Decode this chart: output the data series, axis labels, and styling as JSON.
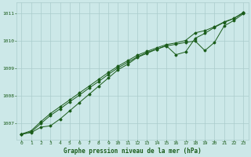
{
  "title": "Graphe pression niveau de la mer (hPa)",
  "bg_color": "#cce8e8",
  "grid_color": "#aacccc",
  "line_color": "#1a5c1a",
  "x_ticks": [
    0,
    1,
    2,
    3,
    4,
    5,
    6,
    7,
    8,
    9,
    10,
    11,
    12,
    13,
    14,
    15,
    16,
    17,
    18,
    19,
    20,
    21,
    22,
    23
  ],
  "y_ticks": [
    1007,
    1008,
    1009,
    1010,
    1011
  ],
  "ylim": [
    1006.4,
    1011.4
  ],
  "xlim": [
    -0.5,
    23.5
  ],
  "series": [
    [
      1006.6,
      1006.65,
      1006.85,
      1006.9,
      1007.15,
      1007.45,
      1007.75,
      1008.05,
      1008.35,
      1008.65,
      1008.95,
      1009.15,
      1009.4,
      1009.55,
      1009.7,
      1009.82,
      1009.88,
      1009.95,
      1010.0,
      1009.65,
      1009.95,
      1010.55,
      1010.75,
      1011.0
    ],
    [
      1006.6,
      1006.72,
      1007.05,
      1007.35,
      1007.6,
      1007.85,
      1008.1,
      1008.35,
      1008.6,
      1008.85,
      1009.08,
      1009.28,
      1009.48,
      1009.62,
      1009.75,
      1009.87,
      1009.93,
      1010.02,
      1010.3,
      1010.38,
      1010.52,
      1010.7,
      1010.83,
      1011.05
    ],
    [
      1006.58,
      1006.68,
      1006.98,
      1007.28,
      1007.52,
      1007.78,
      1008.02,
      1008.28,
      1008.52,
      1008.78,
      1009.02,
      1009.22,
      1009.42,
      1009.58,
      1009.7,
      1009.83,
      1009.5,
      1009.6,
      1010.1,
      1010.28,
      1010.5,
      1010.68,
      1010.82,
      1011.03
    ]
  ]
}
